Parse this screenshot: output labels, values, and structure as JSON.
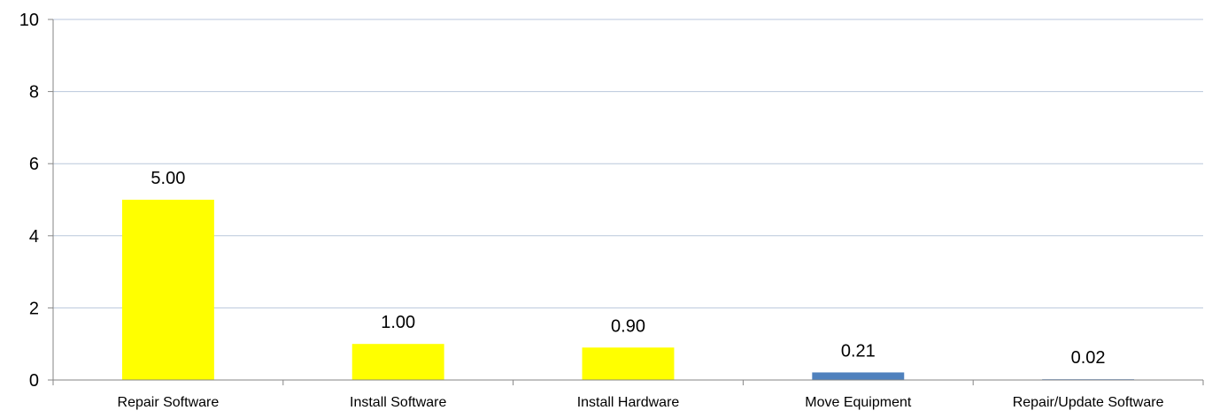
{
  "chart_data": {
    "type": "bar",
    "title": "",
    "xlabel": "",
    "ylabel": "",
    "categories": [
      "Repair Software",
      "Install Software",
      "Install Hardware",
      "Move Equipment",
      "Repair/Update Software"
    ],
    "values": [
      5.0,
      1.0,
      0.9,
      0.21,
      0.02
    ],
    "data_labels": [
      "5.00",
      "1.00",
      "0.90",
      "0.21",
      "0.02"
    ],
    "bar_colors": [
      "#ffff00",
      "#ffff00",
      "#ffff00",
      "#4f81bd",
      "#4f81bd"
    ],
    "ylim": [
      0,
      10
    ],
    "yticks": [
      0,
      2,
      4,
      6,
      8,
      10
    ],
    "ytick_labels": [
      "0",
      "2",
      "4",
      "6",
      "8",
      "10"
    ],
    "grid": true,
    "gridline_color": "#b9c7dc",
    "axis_color": "#868686",
    "legend": "none"
  }
}
